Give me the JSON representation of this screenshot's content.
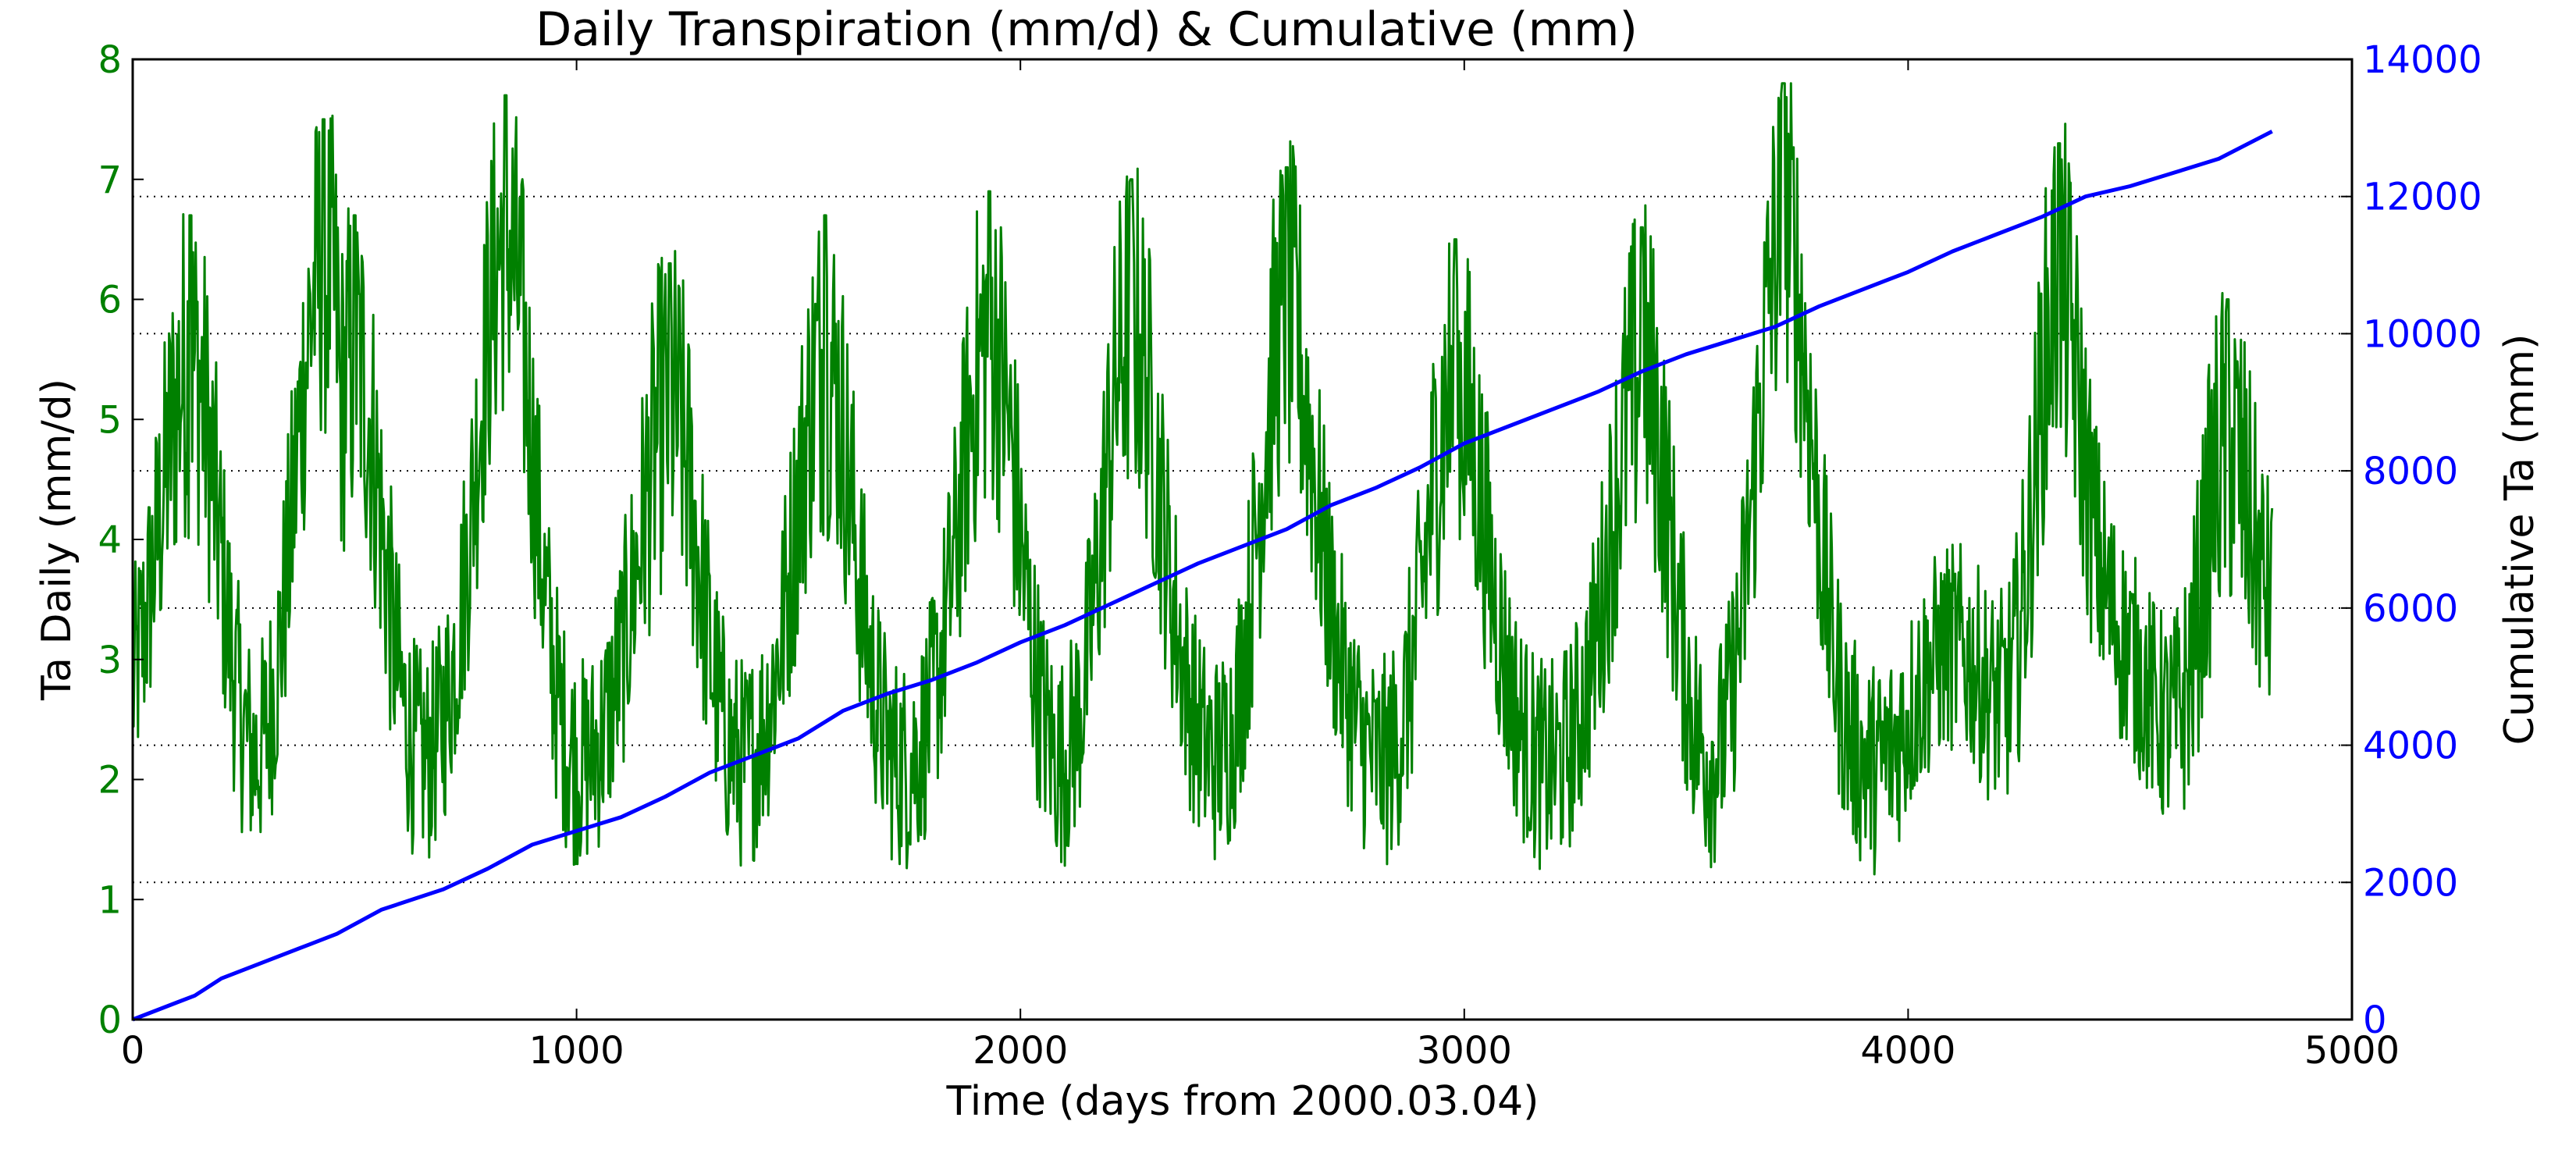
{
  "chart_data": {
    "type": "line",
    "title": "Daily Transpiration (mm/d) & Cumulative (mm)",
    "xlabel": "Time (days from 2000.03.04)",
    "ylabel_left": "Ta Daily (mm/d)",
    "ylabel_right": "Cumulative Ta (mm)",
    "xlim": [
      0,
      5000
    ],
    "ylim_left": [
      0,
      8
    ],
    "ylim_right": [
      0,
      14000
    ],
    "x_ticks": [
      "0",
      "1000",
      "2000",
      "3000",
      "4000",
      "5000"
    ],
    "y_left_ticks": [
      "0",
      "1",
      "2",
      "3",
      "4",
      "5",
      "6",
      "7",
      "8"
    ],
    "y_right_ticks": [
      "0",
      "2000",
      "4000",
      "6000",
      "8000",
      "10000",
      "12000",
      "14000"
    ],
    "grid": "horizontal dotted at right-axis ticks",
    "colors": {
      "left_axis": "#008000",
      "right_axis": "#0000ff"
    },
    "series": [
      {
        "axis": "left",
        "color": "#008000",
        "note": "daily values, annual cycle; seasonal peak near x≈120,480,850,1210,1560,1920,2280,2640,2980,3390,3730,4080,4340,4720",
        "x_start": 0,
        "x_end": 4820,
        "peaks": [
          {
            "x": 130,
            "y": 6.7
          },
          {
            "x": 430,
            "y": 7.5
          },
          {
            "x": 500,
            "y": 6.7
          },
          {
            "x": 840,
            "y": 7.7
          },
          {
            "x": 1210,
            "y": 6.3
          },
          {
            "x": 1560,
            "y": 6.7
          },
          {
            "x": 1930,
            "y": 6.9
          },
          {
            "x": 2250,
            "y": 7.0
          },
          {
            "x": 2600,
            "y": 7.1
          },
          {
            "x": 2980,
            "y": 6.5
          },
          {
            "x": 3400,
            "y": 6.6
          },
          {
            "x": 3720,
            "y": 7.8
          },
          {
            "x": 4340,
            "y": 7.3
          },
          {
            "x": 4720,
            "y": 6.0
          }
        ],
        "baseline_range": [
          1.0,
          3.8
        ]
      },
      {
        "axis": "right",
        "color": "#0000ff",
        "x": [
          0,
          100,
          140,
          200,
          300,
          400,
          460,
          560,
          700,
          800,
          900,
          1000,
          1100,
          1200,
          1300,
          1400,
          1500,
          1600,
          1700,
          1800,
          1900,
          2000,
          2100,
          2200,
          2300,
          2400,
          2500,
          2600,
          2700,
          2800,
          2900,
          3000,
          3100,
          3200,
          3300,
          3400,
          3500,
          3600,
          3700,
          3800,
          3900,
          4000,
          4100,
          4200,
          4300,
          4400,
          4500,
          4600,
          4700,
          4820
        ],
        "values": [
          0,
          250,
          350,
          600,
          850,
          1100,
          1250,
          1600,
          1900,
          2200,
          2550,
          2750,
          2950,
          3250,
          3600,
          3850,
          4100,
          4500,
          4750,
          4950,
          5200,
          5500,
          5750,
          6050,
          6350,
          6650,
          6900,
          7150,
          7500,
          7750,
          8050,
          8400,
          8650,
          8900,
          9150,
          9450,
          9700,
          9900,
          10100,
          10400,
          10650,
          10900,
          11200,
          11450,
          11700,
          12000,
          12150,
          12350,
          12550,
          12950
        ]
      }
    ]
  }
}
